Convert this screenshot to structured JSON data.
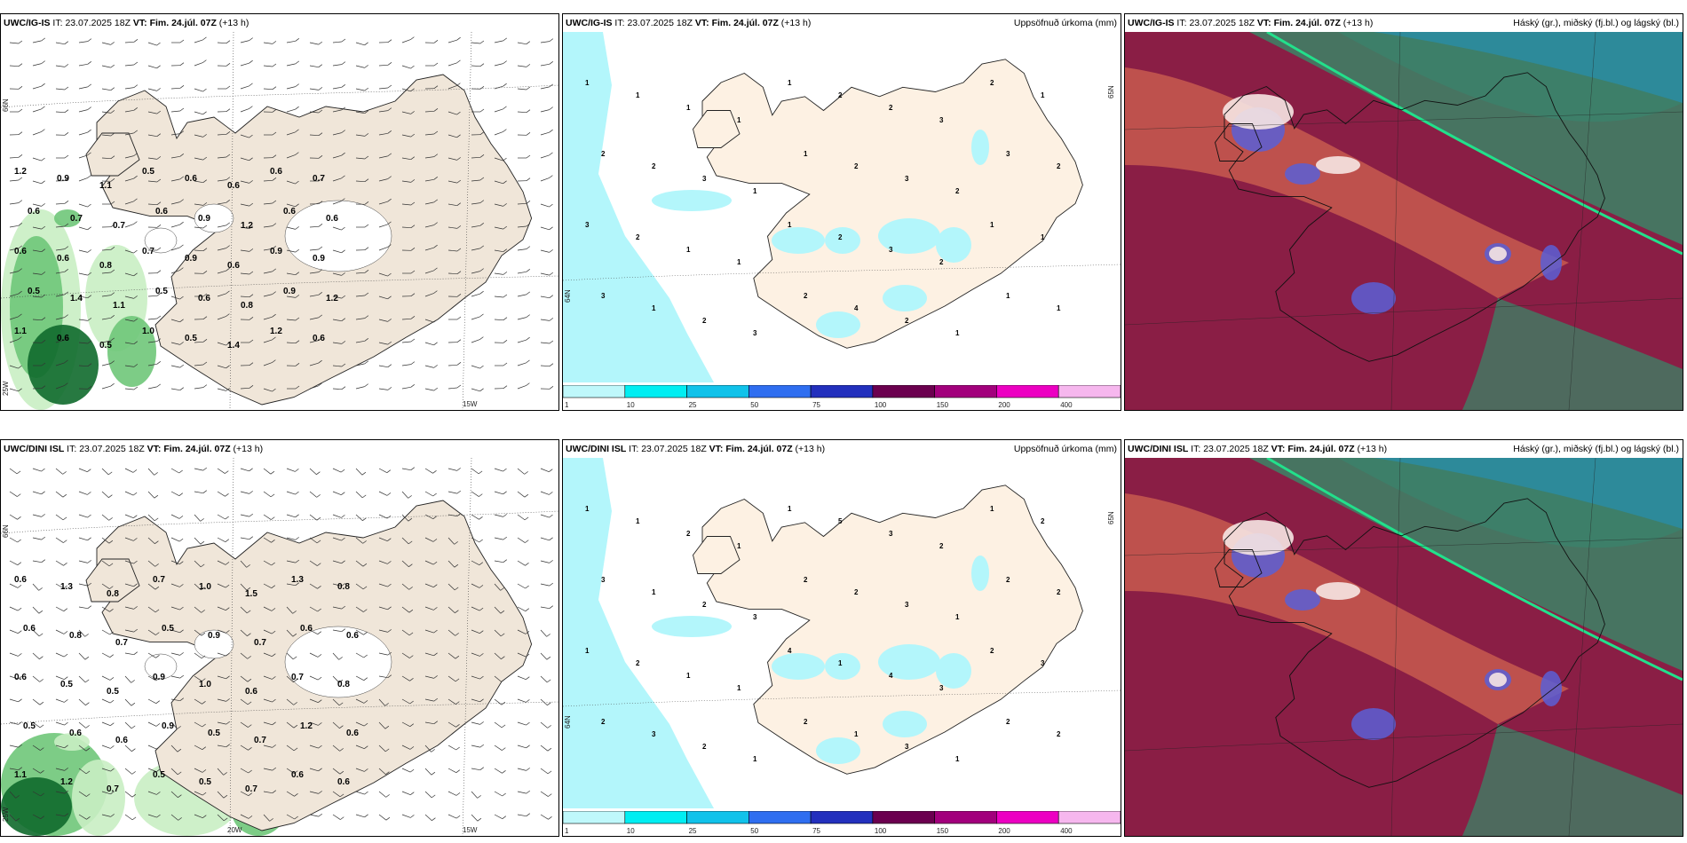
{
  "colors": {
    "land": "#f0e6d9",
    "precip_land": "#fdf1e3",
    "sea": "#ffffff",
    "green_light": "#c9eec3",
    "green_mid": "#6fc679",
    "green_dark": "#0f6a2c",
    "cyan": "#b3f6fb",
    "cloud_high_bg": "#8a1e45",
    "cloud_salmon": "#c75a4f",
    "cloud_teal": "#3f7d64",
    "cloud_blue": "#2d8a9a",
    "cloud_green_line": "#22e08b"
  },
  "panels": [
    {
      "id": "wind-igis",
      "model": "UWC/IG-IS",
      "it_prefix": "IT:",
      "it": "23.07.2025 18Z",
      "vt_prefix": "VT:",
      "vt": "Fim. 24.júl. 07Z",
      "lead": "(+13 h)",
      "right_title": "",
      "lat_labels": [
        "66N",
        "25W"
      ],
      "lon_labels": [
        "15W"
      ],
      "values": [
        {
          "v": "1.2"
        },
        {
          "v": "0.9"
        },
        {
          "v": "1.1"
        },
        {
          "v": "0.5"
        },
        {
          "v": "0.6"
        },
        {
          "v": "0.6"
        },
        {
          "v": "0.6"
        },
        {
          "v": "0.7"
        },
        {
          "v": "0.6"
        },
        {
          "v": "0.7"
        },
        {
          "v": "0.7"
        },
        {
          "v": "0.6"
        },
        {
          "v": "0.9"
        },
        {
          "v": "1.2"
        },
        {
          "v": "0.6"
        },
        {
          "v": "0.6"
        },
        {
          "v": "0.6"
        },
        {
          "v": "0.6"
        },
        {
          "v": "0.8"
        },
        {
          "v": "0.7"
        },
        {
          "v": "0.9"
        },
        {
          "v": "0.6"
        },
        {
          "v": "0.9"
        },
        {
          "v": "0.9"
        },
        {
          "v": "0.5"
        },
        {
          "v": "1.4"
        },
        {
          "v": "1.1"
        },
        {
          "v": "0.5"
        },
        {
          "v": "0.6"
        },
        {
          "v": "0.8"
        },
        {
          "v": "0.9"
        },
        {
          "v": "1.2"
        },
        {
          "v": "1.1"
        },
        {
          "v": "0.6"
        },
        {
          "v": "0.5"
        },
        {
          "v": "1.0"
        },
        {
          "v": "0.5"
        },
        {
          "v": "1.4"
        },
        {
          "v": "1.2"
        },
        {
          "v": "0.6"
        }
      ]
    },
    {
      "id": "precip-igis",
      "model": "UWC/IG-IS",
      "it_prefix": "IT:",
      "it": "23.07.2025 18Z",
      "vt_prefix": "VT:",
      "vt": "Fim. 24.júl. 07Z",
      "lead": "(+13 h)",
      "right_title": "Uppsöfnuð úrkoma (mm)",
      "lat_labels": [
        "65N",
        "64N"
      ],
      "values": [
        {
          "v": "1"
        },
        {
          "v": "1"
        },
        {
          "v": "1"
        },
        {
          "v": "1"
        },
        {
          "v": "1"
        },
        {
          "v": "2"
        },
        {
          "v": "2"
        },
        {
          "v": "3"
        },
        {
          "v": "2"
        },
        {
          "v": "1"
        },
        {
          "v": "2"
        },
        {
          "v": "2"
        },
        {
          "v": "3"
        },
        {
          "v": "1"
        },
        {
          "v": "1"
        },
        {
          "v": "2"
        },
        {
          "v": "3"
        },
        {
          "v": "2"
        },
        {
          "v": "3"
        },
        {
          "v": "2"
        },
        {
          "v": "3"
        },
        {
          "v": "2"
        },
        {
          "v": "1"
        },
        {
          "v": "1"
        },
        {
          "v": "1"
        },
        {
          "v": "2"
        },
        {
          "v": "3"
        },
        {
          "v": "2"
        },
        {
          "v": "1"
        },
        {
          "v": "1"
        },
        {
          "v": "3"
        },
        {
          "v": "1"
        },
        {
          "v": "2"
        },
        {
          "v": "3"
        },
        {
          "v": "2"
        },
        {
          "v": "4"
        },
        {
          "v": "2"
        },
        {
          "v": "1"
        },
        {
          "v": "1"
        },
        {
          "v": "1"
        }
      ]
    },
    {
      "id": "cloud-igis",
      "model": "UWC/IG-IS",
      "it_prefix": "IT:",
      "it": "23.07.2025 18Z",
      "vt_prefix": "VT:",
      "vt": "Fim. 24.júl. 07Z",
      "lead": "(+13 h)",
      "right_title": "Háský (gr.), miðský (fj.bl.) og lágský (bl.)"
    },
    {
      "id": "wind-dini",
      "model": "UWC/DINI ISL",
      "it_prefix": "IT:",
      "it": "23.07.2025 18Z",
      "vt_prefix": "VT:",
      "vt": "Fim. 24.júl. 07Z",
      "lead": "(+13 h)",
      "right_title": "",
      "lat_labels": [
        "66N",
        "25W"
      ],
      "lon_labels": [
        "20W",
        "15W"
      ],
      "values": [
        {
          "v": "0.6"
        },
        {
          "v": "1.3"
        },
        {
          "v": "0.8"
        },
        {
          "v": "0.7"
        },
        {
          "v": "1.0"
        },
        {
          "v": "1.5"
        },
        {
          "v": "1.3"
        },
        {
          "v": "0.8"
        },
        {
          "v": "0.6"
        },
        {
          "v": "0.8"
        },
        {
          "v": "0.7"
        },
        {
          "v": "0.5"
        },
        {
          "v": "0.9"
        },
        {
          "v": "0.7"
        },
        {
          "v": "0.6"
        },
        {
          "v": "0.6"
        },
        {
          "v": "0.6"
        },
        {
          "v": "0.5"
        },
        {
          "v": "0.5"
        },
        {
          "v": "0.9"
        },
        {
          "v": "1.0"
        },
        {
          "v": "0.6"
        },
        {
          "v": "0.7"
        },
        {
          "v": "0.8"
        },
        {
          "v": "0.5"
        },
        {
          "v": "0.6"
        },
        {
          "v": "0.6"
        },
        {
          "v": "0.9"
        },
        {
          "v": "0.5"
        },
        {
          "v": "0.7"
        },
        {
          "v": "1.2"
        },
        {
          "v": "0.6"
        },
        {
          "v": "1.1"
        },
        {
          "v": "1.2"
        },
        {
          "v": "0.7"
        },
        {
          "v": "0.5"
        },
        {
          "v": "0.5"
        },
        {
          "v": "0.7"
        },
        {
          "v": "0.6"
        },
        {
          "v": "0.6"
        }
      ]
    },
    {
      "id": "precip-dini",
      "model": "UWC/DINI ISL",
      "it_prefix": "IT:",
      "it": "23.07.2025 18Z",
      "vt_prefix": "VT:",
      "vt": "Fim. 24.júl. 07Z",
      "lead": "(+13 h)",
      "right_title": "Uppsöfnuð úrkoma (mm)",
      "lat_labels": [
        "65N",
        "64N"
      ],
      "values": [
        {
          "v": "1"
        },
        {
          "v": "1"
        },
        {
          "v": "2"
        },
        {
          "v": "1"
        },
        {
          "v": "1"
        },
        {
          "v": "5"
        },
        {
          "v": "3"
        },
        {
          "v": "2"
        },
        {
          "v": "1"
        },
        {
          "v": "2"
        },
        {
          "v": "3"
        },
        {
          "v": "1"
        },
        {
          "v": "2"
        },
        {
          "v": "3"
        },
        {
          "v": "2"
        },
        {
          "v": "2"
        },
        {
          "v": "3"
        },
        {
          "v": "1"
        },
        {
          "v": "2"
        },
        {
          "v": "2"
        },
        {
          "v": "1"
        },
        {
          "v": "2"
        },
        {
          "v": "1"
        },
        {
          "v": "1"
        },
        {
          "v": "4"
        },
        {
          "v": "1"
        },
        {
          "v": "4"
        },
        {
          "v": "3"
        },
        {
          "v": "2"
        },
        {
          "v": "3"
        },
        {
          "v": "2"
        },
        {
          "v": "3"
        },
        {
          "v": "2"
        },
        {
          "v": "1"
        },
        {
          "v": "2"
        },
        {
          "v": "1"
        },
        {
          "v": "3"
        },
        {
          "v": "1"
        },
        {
          "v": "2"
        },
        {
          "v": "2"
        }
      ]
    },
    {
      "id": "cloud-dini",
      "model": "UWC/DINI ISL",
      "it_prefix": "IT:",
      "it": "23.07.2025 18Z",
      "vt_prefix": "VT:",
      "vt": "Fim. 24.júl. 07Z",
      "lead": "(+13 h)",
      "right_title": "Háský (gr.), miðský (fj.bl.) og lágský (bl.)"
    }
  ],
  "colorbar": {
    "ticks": [
      "1",
      "10",
      "25",
      "50",
      "75",
      "100",
      "150",
      "200",
      "400"
    ],
    "colors": [
      "#bff8fb",
      "#00eef2",
      "#11c2ea",
      "#2f6ef0",
      "#2330bd",
      "#6b004f",
      "#a2007c",
      "#ec00c2",
      "#f6b7ee"
    ]
  }
}
